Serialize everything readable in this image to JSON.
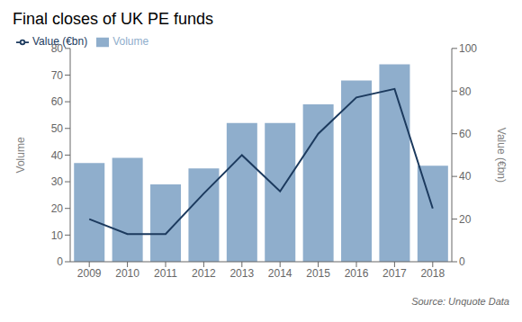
{
  "chart_data": {
    "type": "bar",
    "title": "Final closes of UK PE funds",
    "categories": [
      "2009",
      "2010",
      "2011",
      "2012",
      "2013",
      "2014",
      "2015",
      "2016",
      "2017",
      "2018"
    ],
    "series": [
      {
        "name": "Volume",
        "type": "bar",
        "color": "#8faecc",
        "values": [
          37,
          39,
          29,
          35,
          52,
          52,
          59,
          68,
          74,
          36
        ]
      },
      {
        "name": "Value (€bn)",
        "type": "line",
        "color": "#1c3a5e",
        "axis": "y2",
        "values": [
          20,
          13,
          13,
          32,
          50,
          33,
          60,
          77,
          81,
          25
        ]
      }
    ],
    "ylabel": "Volume",
    "y2label": "Value (€bn)",
    "ylim": [
      0,
      80
    ],
    "yticks": [
      0,
      10,
      20,
      30,
      40,
      50,
      60,
      70,
      80
    ],
    "y2lim": [
      0,
      100
    ],
    "y2ticks": [
      0,
      20,
      40,
      60,
      80,
      100
    ],
    "annotations": [
      "Source: Unquote Data"
    ],
    "legend": "upper left",
    "grid": false
  }
}
